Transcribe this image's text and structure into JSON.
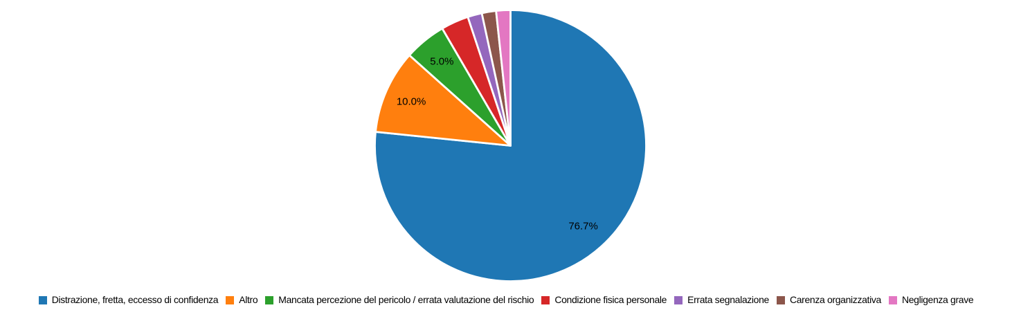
{
  "chart_data": {
    "type": "pie",
    "start_angle_deg": 90,
    "direction": "clockwise",
    "legend_position": "bottom",
    "pct_label_color": "#000000",
    "slice_separator_color": "#ffffff",
    "slices": [
      {
        "label": "Distrazione, fretta, eccesso di confidenza",
        "value": 76.7,
        "pct_label": "76.7%",
        "color": "#1f77b4"
      },
      {
        "label": "Altro",
        "value": 10.0,
        "pct_label": "10.0%",
        "color": "#ff7f0e"
      },
      {
        "label": "Mancata percezione del pericolo / errata valutazione del rischio",
        "value": 5.0,
        "pct_label": "5.0%",
        "color": "#2ca02c"
      },
      {
        "label": "Condizione fisica personale",
        "value": 3.3,
        "pct_label": "",
        "color": "#d62728"
      },
      {
        "label": "Errata segnalazione",
        "value": 1.7,
        "pct_label": "",
        "color": "#9467bd"
      },
      {
        "label": "Carenza organizzativa",
        "value": 1.7,
        "pct_label": "",
        "color": "#8c564b"
      },
      {
        "label": "Negligenza grave",
        "value": 1.7,
        "pct_label": "",
        "color": "#e377c2"
      }
    ]
  }
}
